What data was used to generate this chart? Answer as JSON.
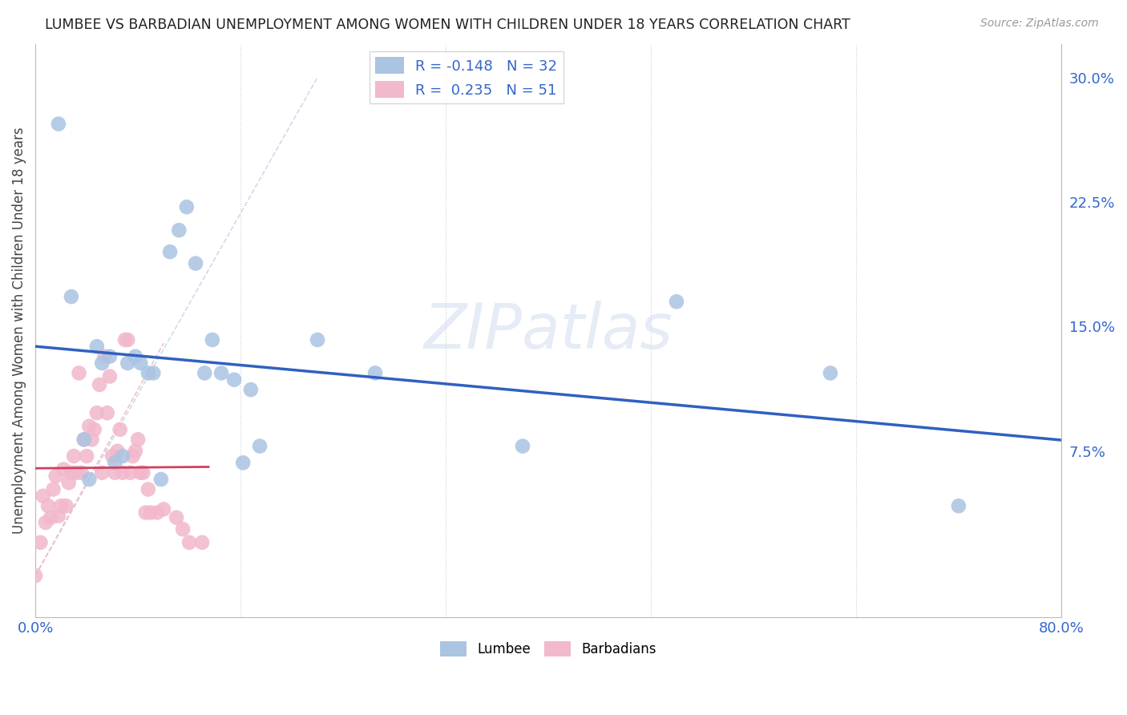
{
  "title": "LUMBEE VS BARBADIAN UNEMPLOYMENT AMONG WOMEN WITH CHILDREN UNDER 18 YEARS CORRELATION CHART",
  "source": "Source: ZipAtlas.com",
  "ylabel": "Unemployment Among Women with Children Under 18 years",
  "xlim": [
    0.0,
    0.8
  ],
  "ylim": [
    -0.025,
    0.32
  ],
  "xticks": [
    0.0,
    0.16,
    0.32,
    0.48,
    0.64,
    0.8
  ],
  "xticklabels": [
    "0.0%",
    "",
    "",
    "",
    "",
    "80.0%"
  ],
  "yticks_right": [
    0.075,
    0.15,
    0.225,
    0.3
  ],
  "yticklabels_right": [
    "7.5%",
    "15.0%",
    "22.5%",
    "30.0%"
  ],
  "lumbee_R": -0.148,
  "lumbee_N": 32,
  "barbadian_R": 0.235,
  "barbadian_N": 51,
  "lumbee_color": "#aac4e2",
  "barbadian_color": "#f2b8cb",
  "lumbee_line_color": "#3060c0",
  "barbadian_line_color": "#d04060",
  "diagonal_color_blue": "#c8d8ec",
  "diagonal_color_pink": "#f0b8c8",
  "background_color": "#ffffff",
  "grid_color": "#cccccc",
  "lumbee_x": [
    0.018,
    0.028,
    0.038,
    0.042,
    0.048,
    0.052,
    0.058,
    0.062,
    0.068,
    0.072,
    0.078,
    0.082,
    0.088,
    0.092,
    0.098,
    0.105,
    0.112,
    0.118,
    0.125,
    0.132,
    0.138,
    0.145,
    0.155,
    0.162,
    0.168,
    0.175,
    0.22,
    0.265,
    0.38,
    0.5,
    0.62,
    0.72
  ],
  "lumbee_y": [
    0.272,
    0.168,
    0.082,
    0.058,
    0.138,
    0.128,
    0.132,
    0.068,
    0.072,
    0.128,
    0.132,
    0.128,
    0.122,
    0.122,
    0.058,
    0.195,
    0.208,
    0.222,
    0.188,
    0.122,
    0.142,
    0.122,
    0.118,
    0.068,
    0.112,
    0.078,
    0.142,
    0.122,
    0.078,
    0.165,
    0.122,
    0.042
  ],
  "barbadian_x": [
    0.0,
    0.004,
    0.006,
    0.008,
    0.01,
    0.012,
    0.014,
    0.016,
    0.018,
    0.02,
    0.022,
    0.024,
    0.026,
    0.028,
    0.03,
    0.032,
    0.034,
    0.036,
    0.038,
    0.04,
    0.042,
    0.044,
    0.046,
    0.048,
    0.05,
    0.052,
    0.054,
    0.056,
    0.058,
    0.06,
    0.062,
    0.064,
    0.066,
    0.068,
    0.07,
    0.072,
    0.074,
    0.076,
    0.078,
    0.08,
    0.082,
    0.084,
    0.086,
    0.088,
    0.09,
    0.095,
    0.1,
    0.11,
    0.115,
    0.12,
    0.13
  ],
  "barbadian_y": [
    0.0,
    0.02,
    0.048,
    0.032,
    0.042,
    0.035,
    0.052,
    0.06,
    0.036,
    0.042,
    0.064,
    0.042,
    0.056,
    0.062,
    0.072,
    0.062,
    0.122,
    0.062,
    0.082,
    0.072,
    0.09,
    0.082,
    0.088,
    0.098,
    0.115,
    0.062,
    0.132,
    0.098,
    0.12,
    0.072,
    0.062,
    0.075,
    0.088,
    0.062,
    0.142,
    0.142,
    0.062,
    0.072,
    0.075,
    0.082,
    0.062,
    0.062,
    0.038,
    0.052,
    0.038,
    0.038,
    0.04,
    0.035,
    0.028,
    0.02,
    0.02
  ]
}
